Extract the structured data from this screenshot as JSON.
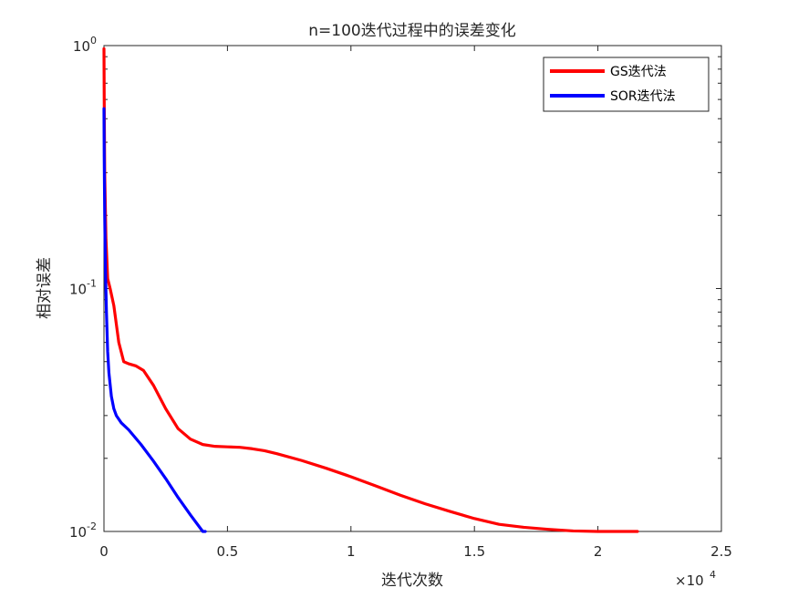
{
  "chart_data": {
    "type": "line",
    "title": "n=100迭代过程中的误差变化",
    "xlabel": "迭代次数",
    "ylabel": "相对误差",
    "x_exponent_label": "×10",
    "x_exponent_power": "4",
    "x_scale": "linear",
    "y_scale": "log",
    "xlim": [
      0,
      25000
    ],
    "ylim": [
      0.01,
      1
    ],
    "x_ticks": [
      0,
      5000,
      10000,
      15000,
      20000,
      25000
    ],
    "x_tick_labels": [
      "0",
      "0.5",
      "1",
      "1.5",
      "2",
      "2.5"
    ],
    "y_ticks": [
      0.01,
      0.1,
      1
    ],
    "y_tick_labels": [
      {
        "base": "10",
        "exp": "-2"
      },
      {
        "base": "10",
        "exp": "-1"
      },
      {
        "base": "10",
        "exp": "0"
      }
    ],
    "grid": false,
    "legend_position": "top-right",
    "series": [
      {
        "name": "GS迭代法",
        "color": "#ff0000",
        "x": [
          0,
          10,
          30,
          80,
          150,
          250,
          400,
          600,
          800,
          1000,
          1300,
          1600,
          2000,
          2500,
          3000,
          3500,
          4000,
          4500,
          5000,
          5500,
          6000,
          6500,
          7000,
          8000,
          9000,
          10000,
          11000,
          12000,
          13000,
          14000,
          15000,
          16000,
          17000,
          18000,
          19000,
          20000,
          21000,
          21600
        ],
        "y": [
          0.97,
          0.6,
          0.3,
          0.16,
          0.11,
          0.1,
          0.085,
          0.06,
          0.05,
          0.049,
          0.048,
          0.046,
          0.04,
          0.032,
          0.0265,
          0.024,
          0.0228,
          0.0224,
          0.0223,
          0.0222,
          0.0219,
          0.0215,
          0.0209,
          0.0196,
          0.0182,
          0.0168,
          0.0154,
          0.0141,
          0.013,
          0.0121,
          0.0113,
          0.0107,
          0.0104,
          0.0102,
          0.01005,
          0.01,
          0.00995,
          0.0099
        ]
      },
      {
        "name": "SOR迭代法",
        "color": "#0000ff",
        "x": [
          0,
          10,
          30,
          60,
          100,
          150,
          200,
          300,
          400,
          500,
          700,
          1000,
          1500,
          2000,
          2500,
          3000,
          3500,
          4000,
          4100
        ],
        "y": [
          0.55,
          0.35,
          0.2,
          0.12,
          0.08,
          0.055,
          0.045,
          0.036,
          0.032,
          0.03,
          0.028,
          0.0262,
          0.0228,
          0.0195,
          0.0165,
          0.0138,
          0.0117,
          0.01,
          0.0099
        ]
      }
    ]
  }
}
